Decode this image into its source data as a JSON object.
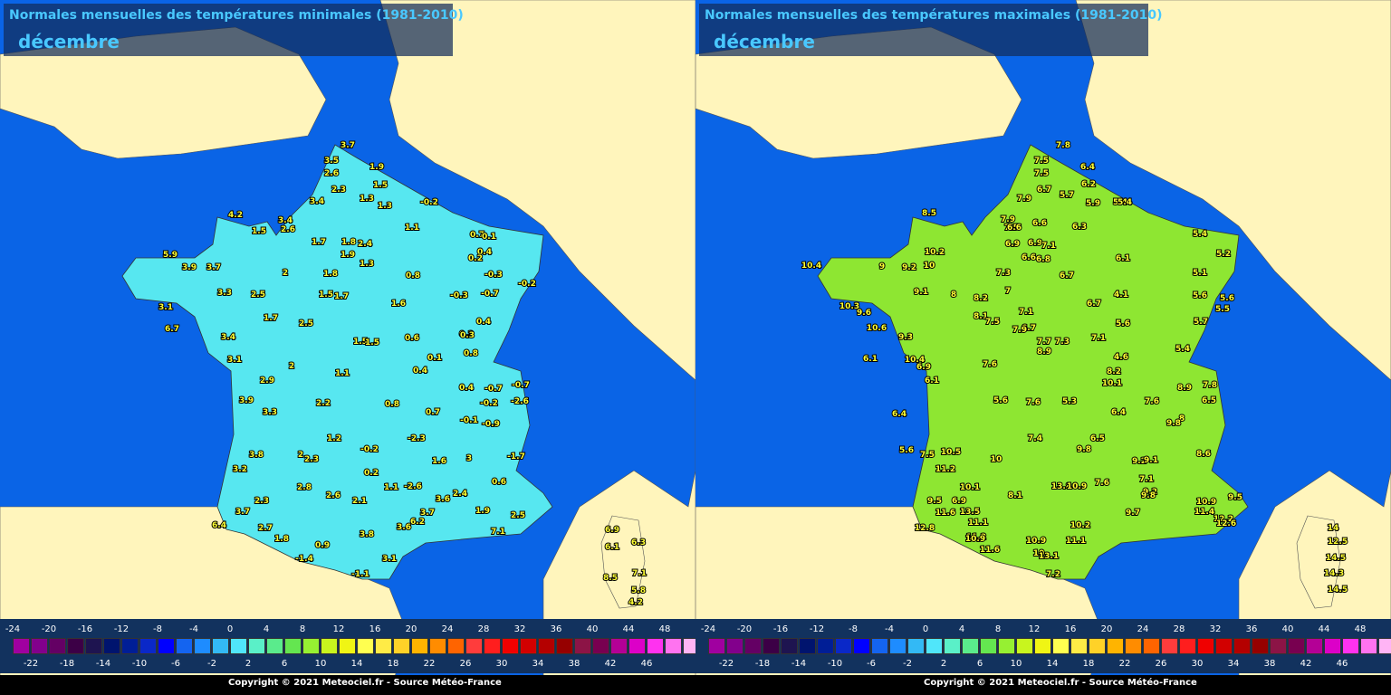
{
  "colors": {
    "sea": "#0a64e6",
    "land": "#fff5bc",
    "legend_bg": "#12325e",
    "title_text": "#49c8ff",
    "label": "#ffff33"
  },
  "maps": [
    {
      "title": "Normales mensuelles des températures minimales (1981-2010)",
      "month": "décembre",
      "fill": "#57e7f0",
      "stations": [
        "3.7",
        "3.5",
        "2.6",
        "1.9",
        "2.3",
        "1.5",
        "1.3",
        "3.4",
        "1.3",
        "-0.2",
        "4.2",
        "3.4",
        "2.6",
        "1.5",
        "1.1",
        "0.7",
        "0.1",
        "1.7",
        "1.8",
        "2.4",
        "0.4",
        "5.9",
        "1.9",
        "1.3",
        "0.2",
        "-0.3",
        "3.9",
        "3.7",
        "2",
        "0.8",
        "-0.3",
        "-0.2",
        "-0.7",
        "2.5",
        "1.8",
        "3.3",
        "1.5",
        "1.7",
        "1.6",
        "0.3",
        "0.4",
        "3.1",
        "1.7",
        "2.5",
        "6.7",
        "3.4",
        "1.5",
        "1.5",
        "0.6",
        "0.3",
        "0.1",
        "0.8",
        "3.1",
        "2",
        "0.4",
        "0.4",
        "1.1",
        "-0.7",
        "-0.7",
        "2.9",
        "2.2",
        "0.8",
        "0.7",
        "-0.2",
        "-2.6",
        "3.9",
        "3.3",
        "-0.1",
        "-0.9",
        "1.2",
        "-2.3",
        "-0.2",
        "3.8",
        "2",
        "2.3",
        "0.2",
        "1.6",
        "3",
        "-1.7",
        "3.2",
        "2.8",
        "1.1",
        "-2.6",
        "2.4",
        "0.6",
        "2.6",
        "2.1",
        "3.6",
        "1.9",
        "2.3",
        "3.7",
        "3.7",
        "2.5",
        "2.7",
        "6.4",
        "1.8",
        "0.9",
        "3.8",
        "3.6",
        "6.2",
        "7.1",
        "-1.4",
        "3.1",
        "-1.1",
        "6.9",
        "6.1",
        "6.3",
        "7.1",
        "8.5",
        "5.8",
        "4.2"
      ],
      "legend": {
        "top_ticks": [
          "-24",
          "-20",
          "-16",
          "-12",
          "-8",
          "-4",
          "0",
          "4",
          "8",
          "12",
          "16",
          "20",
          "24",
          "28",
          "32",
          "36",
          "40",
          "44",
          "48"
        ],
        "bottom_ticks": [
          "-22",
          "-18",
          "-14",
          "-10",
          "-6",
          "-2",
          "2",
          "6",
          "10",
          "14",
          "18",
          "22",
          "26",
          "30",
          "34",
          "38",
          "42",
          "46"
        ],
        "colors": [
          "#a000a0",
          "#82008c",
          "#640064",
          "#3c0046",
          "#1e1450",
          "#00146e",
          "#001e96",
          "#0a28c8",
          "#0000ff",
          "#1464f0",
          "#1e8cff",
          "#33b9f5",
          "#50e6fa",
          "#5af0c8",
          "#5aeb8c",
          "#64e650",
          "#96f032",
          "#c8f51e",
          "#f0f514",
          "#ffff50",
          "#ffeb46",
          "#ffd228",
          "#ffb400",
          "#ff8c00",
          "#ff6400",
          "#ff3c3c",
          "#ff1e1e",
          "#f00000",
          "#d20000",
          "#b40000",
          "#960000",
          "#8c1446",
          "#780050",
          "#b40096",
          "#dc00c8",
          "#ff32f0",
          "#ff73f0",
          "#ffb4f5"
        ]
      },
      "copyright": "Copyright © 2021 Meteociel.fr - Source Météo-France"
    },
    {
      "title": "Normales mensuelles des températures maximales (1981-2010)",
      "month": "décembre",
      "fill": "#8ee632",
      "stations": [
        "7.8",
        "7.5",
        "7.5",
        "6.4",
        "6.2",
        "7.9",
        "6.7",
        "5.7",
        "5.9",
        "5.4",
        "8.5",
        "7.9",
        "7.5",
        "6.6",
        "6.6",
        "6.3",
        "5.4",
        "10.2",
        "9",
        "9.2",
        "6.9",
        "6.9",
        "7.1",
        "5.4",
        "10.4",
        "6.8",
        "6.6",
        "5.2",
        "10",
        "7.3",
        "6.7",
        "6.7",
        "6.1",
        "5.1",
        "9.1",
        "8",
        "8.2",
        "7",
        "5.6",
        "4.1",
        "5.6",
        "10.3",
        "9.6",
        "8.1",
        "6.7",
        "5.5",
        "10.6",
        "9.3",
        "7.5",
        "7.1",
        "5.6",
        "5.7",
        "7.9",
        "7.7",
        "7.3",
        "7.1",
        "5.4",
        "6.1",
        "10.4",
        "8.9",
        "7.6",
        "4.6",
        "8.2",
        "6.9",
        "6.1",
        "10.1",
        "8.9",
        "7.8",
        "6.5",
        "5.6",
        "5.3",
        "7.6",
        "8",
        "7.6",
        "6.4",
        "6.4",
        "9.8",
        "7.4",
        "6.5",
        "9.8",
        "5.6",
        "7.5",
        "10.5",
        "10",
        "9.2",
        "9.1",
        "8.6",
        "7.1",
        "11.2",
        "7.6",
        "10.1",
        "9.2",
        "9.5",
        "9.5",
        "6.9",
        "8.1",
        "13.8",
        "10.9",
        "9.8",
        "10.9",
        "12.2",
        "13.5",
        "11.6",
        "9.7",
        "11.4",
        "12.6",
        "12.8",
        "11.1",
        "10.9",
        "10.2",
        "11.2",
        "11.6",
        "10",
        "10.9",
        "13.1",
        "11.1",
        "14",
        "12.5",
        "7.2",
        "14.5",
        "14.3",
        "14.5"
      ],
      "legend": {
        "top_ticks": [
          "-24",
          "-20",
          "-16",
          "-12",
          "-8",
          "-4",
          "0",
          "4",
          "8",
          "12",
          "16",
          "20",
          "24",
          "28",
          "32",
          "36",
          "40",
          "44",
          "48"
        ],
        "bottom_ticks": [
          "-22",
          "-18",
          "-14",
          "-10",
          "-6",
          "-2",
          "2",
          "6",
          "10",
          "14",
          "18",
          "22",
          "26",
          "30",
          "34",
          "38",
          "42",
          "46"
        ],
        "colors": [
          "#a000a0",
          "#82008c",
          "#640064",
          "#3c0046",
          "#1e1450",
          "#00146e",
          "#001e96",
          "#0a28c8",
          "#0000ff",
          "#1464f0",
          "#1e8cff",
          "#33b9f5",
          "#50e6fa",
          "#5af0c8",
          "#5aeb8c",
          "#64e650",
          "#96f032",
          "#c8f51e",
          "#f0f514",
          "#ffff50",
          "#ffeb46",
          "#ffd228",
          "#ffb400",
          "#ff8c00",
          "#ff6400",
          "#ff3c3c",
          "#ff1e1e",
          "#f00000",
          "#d20000",
          "#b40000",
          "#960000",
          "#8c1446",
          "#780050",
          "#b40096",
          "#dc00c8",
          "#ff32f0",
          "#ff73f0",
          "#ffb4f5"
        ]
      },
      "copyright": "Copyright © 2021 Meteociel.fr - Source Météo-France"
    }
  ]
}
